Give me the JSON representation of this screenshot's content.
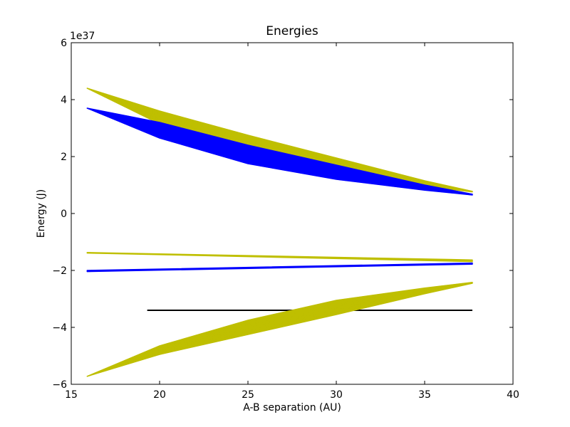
{
  "chart_data": {
    "type": "line",
    "title": "Energies",
    "xlabel": "A-B separation (AU)",
    "ylabel": "Energy (J)",
    "y_offset_label": "1e37",
    "xlim": [
      15,
      40
    ],
    "ylim": [
      -6,
      6
    ],
    "y_scale_factor": 1e+37,
    "grid": false,
    "xticks": [
      15,
      20,
      25,
      30,
      35,
      40
    ],
    "yticks": [
      -6,
      -4,
      -2,
      0,
      2,
      4,
      6
    ],
    "xtick_labels": [
      "15",
      "20",
      "25",
      "30",
      "35",
      "40"
    ],
    "ytick_labels": [
      "−6",
      "−4",
      "−2",
      "0",
      "2",
      "4",
      "6"
    ],
    "series": [
      {
        "color": "#bfbf00",
        "style": "band-dashed",
        "x": [
          15.9,
          20,
          25,
          30,
          35,
          37.7
        ],
        "upper": [
          4.4,
          3.6,
          2.75,
          1.95,
          1.15,
          0.78
        ],
        "lower": [
          4.4,
          3.15,
          2.15,
          1.4,
          0.95,
          0.76
        ]
      },
      {
        "color": "#0000ff",
        "style": "band-dashed",
        "x": [
          15.9,
          20,
          25,
          30,
          35,
          37.7
        ],
        "upper": [
          3.7,
          3.2,
          2.4,
          1.7,
          1.0,
          0.68
        ],
        "lower": [
          3.7,
          2.65,
          1.75,
          1.2,
          0.82,
          0.65
        ]
      },
      {
        "color": "#bfbf00",
        "style": "band",
        "x": [
          15.9,
          37.7
        ],
        "upper": [
          -1.37,
          -1.63
        ],
        "lower": [
          -1.39,
          -1.69
        ]
      },
      {
        "color": "#0000ff",
        "style": "band",
        "x": [
          15.9,
          37.7
        ],
        "upper": [
          -2.0,
          -1.74
        ],
        "lower": [
          -2.04,
          -1.78
        ]
      },
      {
        "color": "#000000",
        "style": "line",
        "x": [
          19.3,
          37.7
        ],
        "y": [
          -3.4,
          -3.4
        ]
      },
      {
        "color": "#bfbf00",
        "style": "band-dashed",
        "x": [
          15.9,
          20,
          25,
          30,
          35,
          37.7
        ],
        "upper": [
          -5.72,
          -4.65,
          -3.75,
          -3.05,
          -2.62,
          -2.42
        ],
        "lower": [
          -5.72,
          -4.95,
          -4.25,
          -3.55,
          -2.82,
          -2.45
        ]
      }
    ]
  }
}
